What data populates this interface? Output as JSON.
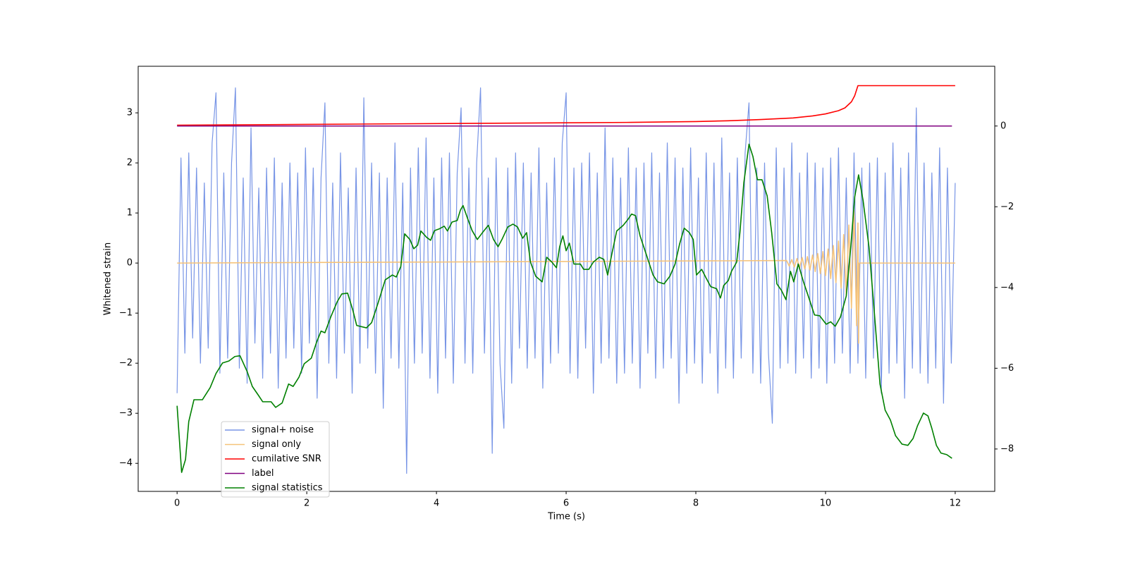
{
  "chart_data": {
    "type": "line",
    "xlabel": "Time (s)",
    "ylabel": "Whitened strain",
    "xlim": [
      -0.6,
      12.61
    ],
    "xticks": [
      0,
      2,
      4,
      6,
      8,
      10,
      12
    ],
    "ylim": [
      -4.56,
      3.93
    ],
    "yticks": [
      {
        "value": -4,
        "label": "−4"
      },
      {
        "value": -3,
        "label": "−3"
      },
      {
        "value": -2,
        "label": "−2"
      },
      {
        "value": -1,
        "label": "−1"
      },
      0,
      1,
      2,
      3
    ],
    "y2lim": [
      -9.05,
      1.48
    ],
    "y2ticks": [
      {
        "value": -8,
        "label": "−8"
      },
      {
        "value": -6,
        "label": "−6"
      },
      {
        "value": -4,
        "label": "−4"
      },
      {
        "value": -2,
        "label": "−2"
      },
      0
    ],
    "legend": "lower left",
    "series": [
      {
        "name": "signal+ noise",
        "color": "#7895e6",
        "x": [
          0,
          0.06,
          0.12,
          0.18,
          0.24,
          0.3,
          0.36,
          0.42,
          0.48,
          0.54,
          0.6,
          0.66,
          0.72,
          0.78,
          0.84,
          0.9,
          0.96,
          1.02,
          1.08,
          1.14,
          1.2,
          1.26,
          1.32,
          1.38,
          1.44,
          1.5,
          1.56,
          1.62,
          1.68,
          1.74,
          1.8,
          1.86,
          1.92,
          1.98,
          2.04,
          2.1,
          2.16,
          2.22,
          2.28,
          2.34,
          2.4,
          2.46,
          2.52,
          2.58,
          2.64,
          2.7,
          2.76,
          2.82,
          2.88,
          2.94,
          3.0,
          3.06,
          3.12,
          3.18,
          3.24,
          3.3,
          3.36,
          3.42,
          3.48,
          3.54,
          3.6,
          3.66,
          3.72,
          3.78,
          3.84,
          3.9,
          3.96,
          4.02,
          4.08,
          4.14,
          4.2,
          4.26,
          4.32,
          4.38,
          4.44,
          4.5,
          4.56,
          4.62,
          4.68,
          4.74,
          4.8,
          4.86,
          4.92,
          4.98,
          5.04,
          5.1,
          5.16,
          5.22,
          5.28,
          5.34,
          5.4,
          5.46,
          5.52,
          5.58,
          5.64,
          5.7,
          5.76,
          5.82,
          5.88,
          5.94,
          6.0,
          6.06,
          6.12,
          6.18,
          6.24,
          6.3,
          6.36,
          6.42,
          6.48,
          6.54,
          6.6,
          6.66,
          6.72,
          6.78,
          6.84,
          6.9,
          6.96,
          7.02,
          7.08,
          7.14,
          7.2,
          7.26,
          7.32,
          7.38,
          7.44,
          7.5,
          7.56,
          7.62,
          7.68,
          7.74,
          7.8,
          7.86,
          7.92,
          7.98,
          8.04,
          8.1,
          8.16,
          8.22,
          8.28,
          8.34,
          8.4,
          8.46,
          8.52,
          8.58,
          8.64,
          8.7,
          8.76,
          8.82,
          8.88,
          8.94,
          9.0,
          9.06,
          9.12,
          9.18,
          9.24,
          9.3,
          9.36,
          9.42,
          9.48,
          9.54,
          9.6,
          9.66,
          9.72,
          9.78,
          9.84,
          9.9,
          9.96,
          10.02,
          10.08,
          10.14,
          10.2,
          10.26,
          10.32,
          10.38,
          10.44,
          10.5,
          10.56,
          10.62,
          10.68,
          10.74,
          10.8,
          10.86,
          10.92,
          10.98,
          11.04,
          11.1,
          11.16,
          11.22,
          11.28,
          11.34,
          11.4,
          11.46,
          11.52,
          11.58,
          11.64,
          11.7,
          11.76,
          11.82,
          11.88,
          11.94,
          12.0
        ],
        "values": [
          -2.6,
          2.1,
          -1.8,
          2.2,
          -1.5,
          1.9,
          -2.0,
          1.6,
          -1.7,
          2.4,
          3.4,
          -2.2,
          1.8,
          -1.9,
          2.0,
          3.5,
          -2.1,
          1.7,
          -2.4,
          2.7,
          -1.6,
          1.5,
          -2.3,
          1.9,
          -1.8,
          2.1,
          -2.5,
          1.6,
          -1.9,
          2.0,
          -1.7,
          1.8,
          -2.2,
          2.3,
          -1.6,
          1.9,
          -2.7,
          1.7,
          3.2,
          -2.0,
          1.6,
          -2.3,
          2.2,
          -1.8,
          1.5,
          -2.6,
          1.9,
          -2.0,
          3.3,
          -1.7,
          2.0,
          -2.2,
          1.8,
          -2.9,
          1.7,
          -1.9,
          2.4,
          -2.1,
          1.6,
          -4.2,
          1.9,
          -2.0,
          2.3,
          -1.8,
          2.5,
          -2.3,
          1.7,
          -2.6,
          2.1,
          -1.9,
          2.2,
          -2.4,
          1.8,
          3.1,
          -2.0,
          1.9,
          -2.2,
          2.0,
          3.5,
          -1.8,
          1.7,
          -3.8,
          2.1,
          -2.0,
          -3.3,
          1.9,
          -2.4,
          2.2,
          -1.7,
          2.0,
          -2.1,
          1.8,
          -1.9,
          2.3,
          -2.5,
          1.6,
          -2.0,
          2.1,
          -1.8,
          2.4,
          3.4,
          -2.2,
          1.9,
          -2.3,
          2.0,
          -1.7,
          2.2,
          -2.6,
          1.8,
          -2.0,
          2.7,
          -1.9,
          2.1,
          -2.4,
          1.7,
          -2.2,
          2.3,
          -2.0,
          1.9,
          -2.5,
          2.0,
          -1.8,
          2.2,
          -2.3,
          1.8,
          -2.1,
          2.4,
          -1.9,
          2.1,
          -2.8,
          1.9,
          -2.2,
          2.3,
          -2.0,
          1.7,
          -2.4,
          2.2,
          -1.8,
          2.0,
          -2.6,
          2.5,
          -2.1,
          1.8,
          -2.3,
          2.1,
          -1.9,
          2.2,
          3.2,
          -2.2,
          1.9,
          -2.4,
          2.0,
          -1.8,
          -3.2,
          2.3,
          -2.1,
          1.9,
          -2.0,
          2.4,
          -2.2,
          1.8,
          -1.9,
          2.2,
          -2.3,
          2.0,
          -2.1,
          1.9,
          -2.4,
          2.1,
          -2.0,
          2.3,
          -1.8,
          1.7,
          -2.2,
          2.2,
          -2.0,
          1.9,
          -2.3,
          2.0,
          -1.9,
          2.1,
          -2.6,
          1.8,
          -2.2,
          2.4,
          -2.0,
          1.9,
          -2.7,
          2.2,
          -2.1,
          3.1,
          -2.2,
          2.0,
          -2.4,
          1.8,
          -2.1,
          2.3,
          -2.8,
          1.9,
          -2.0,
          1.6
        ]
      },
      {
        "name": "signal only",
        "color": "#f5c37a",
        "x": [
          0,
          9.4,
          9.44,
          9.48,
          9.52,
          9.56,
          9.6,
          9.64,
          9.68,
          9.72,
          9.76,
          9.8,
          9.84,
          9.88,
          9.92,
          9.96,
          10.0,
          10.04,
          10.08,
          10.12,
          10.16,
          10.2,
          10.24,
          10.28,
          10.32,
          10.36,
          10.4,
          10.44,
          10.48,
          10.5,
          10.51,
          10.52,
          12
        ],
        "values": [
          0,
          0.05,
          -0.06,
          0.07,
          -0.08,
          0.09,
          -0.1,
          0.11,
          -0.12,
          0.13,
          -0.14,
          0.16,
          -0.17,
          0.19,
          -0.21,
          0.23,
          -0.25,
          0.28,
          -0.31,
          0.35,
          -0.39,
          0.44,
          -0.5,
          0.57,
          -0.66,
          0.76,
          -0.9,
          1.05,
          -1.25,
          0.8,
          -1.6,
          0,
          0
        ]
      },
      {
        "name": "cumilative SNR",
        "color": "#ff0000",
        "axis": "y2",
        "x": [
          0,
          2,
          4,
          6,
          7,
          8,
          8.5,
          9,
          9.5,
          9.8,
          10,
          10.2,
          10.3,
          10.4,
          10.45,
          10.5,
          12
        ],
        "values": [
          0.02,
          0.04,
          0.06,
          0.08,
          0.09,
          0.11,
          0.13,
          0.16,
          0.2,
          0.25,
          0.3,
          0.38,
          0.45,
          0.6,
          0.75,
          1.0,
          1.0
        ]
      },
      {
        "name": "label",
        "color": "#800080",
        "axis": "y2",
        "x": [
          0,
          11.95
        ],
        "values": [
          0,
          0
        ]
      },
      {
        "name": "signal statistics",
        "color": "#008000",
        "axis": "y2",
        "x": [
          0,
          0.07,
          0.13,
          0.18,
          0.26,
          0.39,
          0.51,
          0.6,
          0.7,
          0.8,
          0.89,
          0.97,
          1.08,
          1.16,
          1.25,
          1.32,
          1.45,
          1.52,
          1.62,
          1.72,
          1.79,
          1.88,
          1.96,
          2.07,
          2.15,
          2.22,
          2.28,
          2.37,
          2.47,
          2.54,
          2.63,
          2.71,
          2.77,
          2.92,
          3.0,
          3.1,
          3.21,
          3.32,
          3.38,
          3.45,
          3.51,
          3.59,
          3.65,
          3.71,
          3.76,
          3.85,
          3.91,
          3.97,
          4.04,
          4.12,
          4.17,
          4.24,
          4.32,
          4.37,
          4.41,
          4.48,
          4.55,
          4.63,
          4.71,
          4.8,
          4.88,
          4.95,
          5.01,
          5.1,
          5.18,
          5.25,
          5.33,
          5.39,
          5.45,
          5.53,
          5.63,
          5.7,
          5.78,
          5.85,
          5.9,
          5.95,
          6.0,
          6.05,
          6.12,
          6.22,
          6.27,
          6.35,
          6.42,
          6.51,
          6.58,
          6.64,
          6.71,
          6.78,
          6.88,
          6.95,
          7.01,
          7.07,
          7.14,
          7.25,
          7.34,
          7.41,
          7.51,
          7.6,
          7.68,
          7.75,
          7.82,
          7.9,
          7.96,
          8.01,
          8.09,
          8.16,
          8.23,
          8.32,
          8.38,
          8.43,
          8.5,
          8.55,
          8.63,
          8.68,
          8.74,
          8.82,
          8.88,
          8.95,
          9.02,
          9.1,
          9.17,
          9.25,
          9.32,
          9.39,
          9.46,
          9.51,
          9.58,
          9.66,
          9.74,
          9.83,
          9.91,
          10.01,
          10.08,
          10.15,
          10.23,
          10.32,
          10.39,
          10.45,
          10.51,
          10.58,
          10.67,
          10.75,
          10.84,
          10.92,
          11.0,
          11.08,
          11.18,
          11.27,
          11.35,
          11.42,
          11.51,
          11.58,
          11.64,
          11.71,
          11.78,
          11.87,
          11.95
        ],
        "values": [
          -6.93,
          -8.58,
          -8.26,
          -7.32,
          -6.78,
          -6.78,
          -6.48,
          -6.13,
          -5.87,
          -5.82,
          -5.71,
          -5.69,
          -6.08,
          -6.45,
          -6.66,
          -6.83,
          -6.83,
          -6.97,
          -6.86,
          -6.39,
          -6.45,
          -6.22,
          -5.89,
          -5.75,
          -5.36,
          -5.08,
          -5.12,
          -4.73,
          -4.35,
          -4.16,
          -4.14,
          -4.56,
          -4.94,
          -5.0,
          -4.87,
          -4.38,
          -3.81,
          -3.69,
          -3.74,
          -3.48,
          -2.67,
          -2.81,
          -3.04,
          -2.95,
          -2.6,
          -2.76,
          -2.83,
          -2.59,
          -2.55,
          -2.48,
          -2.6,
          -2.38,
          -2.34,
          -2.08,
          -1.97,
          -2.29,
          -2.59,
          -2.81,
          -2.64,
          -2.46,
          -2.81,
          -2.99,
          -2.81,
          -2.5,
          -2.43,
          -2.5,
          -2.78,
          -2.64,
          -3.37,
          -3.72,
          -3.86,
          -3.25,
          -3.37,
          -3.51,
          -2.99,
          -2.72,
          -3.09,
          -2.9,
          -3.42,
          -3.42,
          -3.55,
          -3.55,
          -3.37,
          -3.25,
          -3.3,
          -3.69,
          -3.13,
          -2.6,
          -2.46,
          -2.32,
          -2.18,
          -2.22,
          -2.72,
          -3.25,
          -3.69,
          -3.86,
          -3.91,
          -3.72,
          -3.42,
          -2.92,
          -2.53,
          -2.64,
          -2.81,
          -3.69,
          -3.55,
          -3.77,
          -3.98,
          -4.03,
          -4.26,
          -3.95,
          -3.83,
          -3.6,
          -3.37,
          -2.64,
          -1.41,
          -0.45,
          -0.75,
          -1.33,
          -1.33,
          -1.73,
          -2.64,
          -3.91,
          -4.07,
          -4.3,
          -3.6,
          -3.86,
          -3.42,
          -3.86,
          -4.24,
          -4.68,
          -4.7,
          -4.91,
          -4.85,
          -4.96,
          -4.73,
          -4.21,
          -2.99,
          -1.76,
          -1.21,
          -1.85,
          -2.99,
          -4.56,
          -6.39,
          -7.04,
          -7.28,
          -7.67,
          -7.88,
          -7.91,
          -7.74,
          -7.42,
          -7.11,
          -7.18,
          -7.49,
          -7.91,
          -8.1,
          -8.14,
          -8.23
        ]
      }
    ]
  }
}
